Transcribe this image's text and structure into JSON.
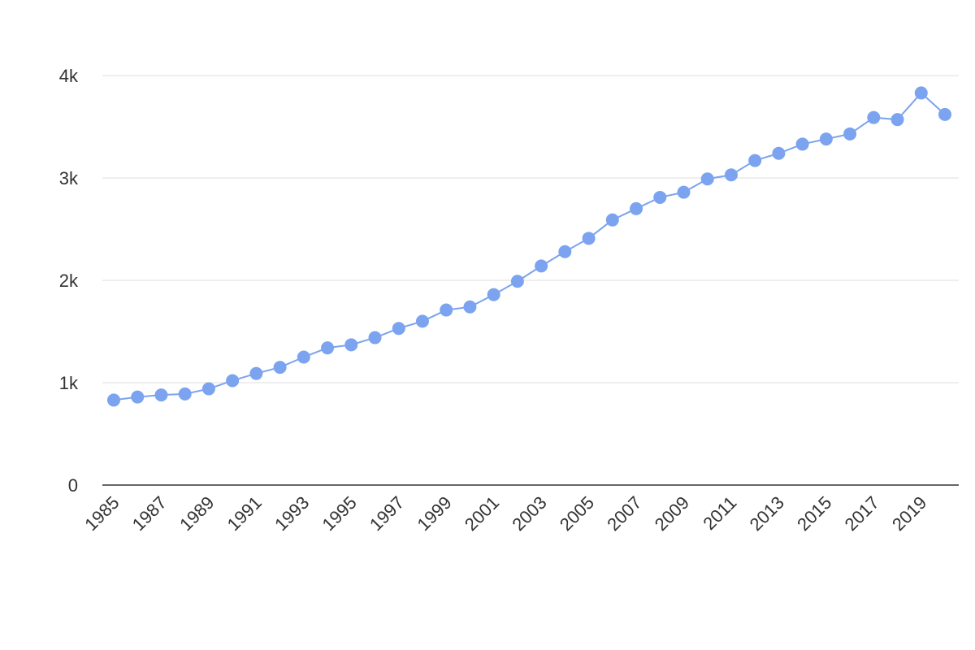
{
  "chart_data": {
    "type": "line",
    "title": "",
    "xlabel": "",
    "ylabel": "",
    "x": [
      1985,
      1986,
      1987,
      1988,
      1989,
      1990,
      1991,
      1992,
      1993,
      1994,
      1995,
      1996,
      1997,
      1998,
      1999,
      2000,
      2001,
      2002,
      2003,
      2004,
      2005,
      2006,
      2007,
      2008,
      2009,
      2010,
      2011,
      2012,
      2013,
      2014,
      2015,
      2016,
      2017,
      2018,
      2019,
      2020
    ],
    "series": [
      {
        "values": [
          830,
          860,
          880,
          890,
          940,
          1020,
          1090,
          1150,
          1250,
          1340,
          1370,
          1440,
          1530,
          1600,
          1710,
          1740,
          1860,
          1990,
          2140,
          2280,
          2410,
          2590,
          2700,
          2810,
          2860,
          2990,
          3030,
          3170,
          3240,
          3330,
          3380,
          3430,
          3590,
          3570,
          3830,
          3620
        ]
      }
    ],
    "ylim": [
      0,
      4000
    ],
    "y_ticks": [
      {
        "value": 0,
        "label": "0"
      },
      {
        "value": 1000,
        "label": "1k"
      },
      {
        "value": 2000,
        "label": "2k"
      },
      {
        "value": 3000,
        "label": "3k"
      },
      {
        "value": 4000,
        "label": "4k"
      }
    ],
    "x_tick_labels": [
      "1985",
      "1987",
      "1989",
      "1991",
      "1993",
      "1995",
      "1997",
      "1999",
      "2001",
      "2003",
      "2005",
      "2007",
      "2009",
      "2011",
      "2013",
      "2015",
      "2017",
      "2019"
    ],
    "grid": true,
    "legend": "none",
    "colors": {
      "series": "#7ba3ef",
      "line": "#7ba3ef",
      "grid": "#dddddd",
      "axis": "#333333",
      "text": "#333333"
    }
  }
}
